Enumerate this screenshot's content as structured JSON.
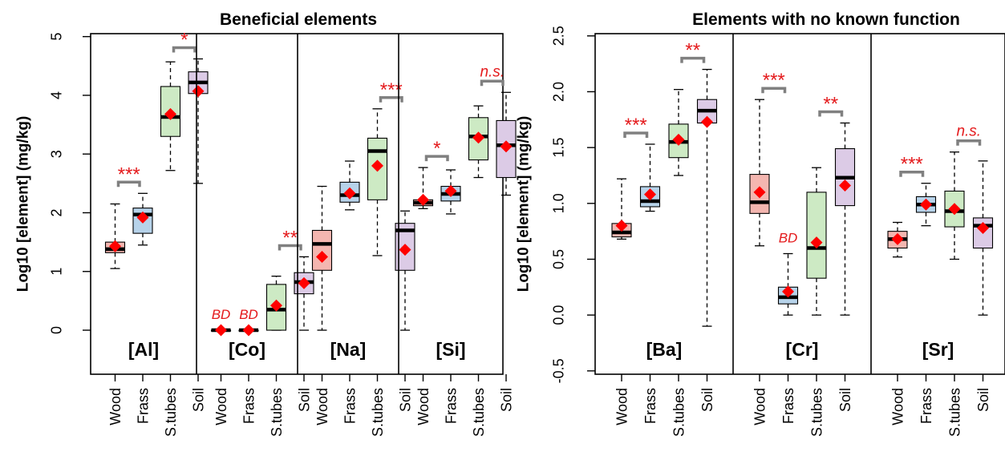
{
  "colors": {
    "Wood": "#f4b6b0",
    "Frass": "#b7d3ea",
    "S.tubes": "#cdeac4",
    "Soil": "#dccbe6",
    "mean": "#ff0000",
    "annotation": "#e41a1c",
    "bracket": "#808080"
  },
  "chart_data": [
    {
      "type": "box",
      "title": "Beneficial elements",
      "ylabel": "Log10 [element] (mg/kg)",
      "ylim": [
        -0.75,
        5.05
      ],
      "yticks": [
        "0",
        "1",
        "2",
        "3",
        "4",
        "5"
      ],
      "categories": [
        "Wood",
        "Frass",
        "S.tubes",
        "Soil"
      ],
      "panels": [
        {
          "label": "[Al]",
          "boxes": [
            {
              "min": 1.05,
              "q1": 1.32,
              "median": 1.38,
              "q3": 1.5,
              "max": 2.15,
              "mean": 1.43
            },
            {
              "min": 1.45,
              "q1": 1.65,
              "median": 1.97,
              "q3": 2.08,
              "max": 2.33,
              "mean": 1.92
            },
            {
              "min": 2.72,
              "q1": 3.3,
              "median": 3.63,
              "q3": 4.15,
              "max": 4.57,
              "mean": 3.68
            },
            {
              "min": 2.5,
              "q1": 4.03,
              "median": 4.22,
              "q3": 4.4,
              "max": 4.62,
              "mean": 4.07
            }
          ],
          "comparisons": [
            {
              "pair": [
                0,
                1
              ],
              "label": "***",
              "italic": false
            },
            {
              "pair": [
                2,
                3
              ],
              "label": "*",
              "italic": false
            }
          ],
          "bd": []
        },
        {
          "label": "[Co]",
          "boxes": [
            {
              "min": 0.0,
              "q1": 0.0,
              "median": 0.0,
              "q3": 0.0,
              "max": 0.0,
              "mean": 0.0
            },
            {
              "min": 0.0,
              "q1": 0.0,
              "median": 0.0,
              "q3": 0.0,
              "max": 0.0,
              "mean": 0.0
            },
            {
              "min": 0.0,
              "q1": 0.0,
              "median": 0.35,
              "q3": 0.78,
              "max": 0.92,
              "mean": 0.42
            },
            {
              "min": 0.0,
              "q1": 0.62,
              "median": 0.82,
              "q3": 0.98,
              "max": 1.25,
              "mean": 0.8
            }
          ],
          "comparisons": [
            {
              "pair": [
                2,
                3
              ],
              "label": "**",
              "italic": false
            }
          ],
          "bd": [
            {
              "index": 0,
              "label": "BD"
            },
            {
              "index": 1,
              "label": "BD"
            }
          ]
        },
        {
          "label": "[Na]",
          "boxes": [
            {
              "min": 0.0,
              "q1": 1.02,
              "median": 1.47,
              "q3": 1.7,
              "max": 2.45,
              "mean": 1.25
            },
            {
              "min": 2.05,
              "q1": 2.18,
              "median": 2.3,
              "q3": 2.52,
              "max": 2.88,
              "mean": 2.33
            },
            {
              "min": 1.27,
              "q1": 2.22,
              "median": 3.05,
              "q3": 3.27,
              "max": 3.77,
              "mean": 2.8
            },
            {
              "min": 0.0,
              "q1": 1.02,
              "median": 1.7,
              "q3": 1.82,
              "max": 2.03,
              "mean": 1.37
            }
          ],
          "comparisons": [
            {
              "pair": [
                2,
                3
              ],
              "label": "***",
              "italic": false
            }
          ],
          "bd": []
        },
        {
          "label": "[Si]",
          "boxes": [
            {
              "min": 2.07,
              "q1": 2.12,
              "median": 2.17,
              "q3": 2.22,
              "max": 2.77,
              "mean": 2.22
            },
            {
              "min": 1.98,
              "q1": 2.2,
              "median": 2.32,
              "q3": 2.45,
              "max": 2.73,
              "mean": 2.37
            },
            {
              "min": 2.6,
              "q1": 2.9,
              "median": 3.3,
              "q3": 3.62,
              "max": 3.82,
              "mean": 3.28
            },
            {
              "min": 2.3,
              "q1": 2.6,
              "median": 3.15,
              "q3": 3.57,
              "max": 4.05,
              "mean": 3.13
            }
          ],
          "comparisons": [
            {
              "pair": [
                0,
                1
              ],
              "label": "*",
              "italic": false
            },
            {
              "pair": [
                2,
                3
              ],
              "label": "n.s.",
              "italic": true
            }
          ],
          "bd": []
        }
      ]
    },
    {
      "type": "box",
      "title": "Elements with no known function",
      "ylabel": "Log10 [element] (mg/kg)",
      "ylim": [
        -0.53,
        2.52
      ],
      "yticks": [
        "-0.5",
        "0.0",
        "0.5",
        "1.0",
        "1.5",
        "2.0",
        "2.5"
      ],
      "categories": [
        "Wood",
        "Frass",
        "S.tubes",
        "Soil"
      ],
      "panels": [
        {
          "label": "[Ba]",
          "boxes": [
            {
              "min": 0.68,
              "q1": 0.7,
              "median": 0.74,
              "q3": 0.82,
              "max": 1.22,
              "mean": 0.8
            },
            {
              "min": 0.93,
              "q1": 0.97,
              "median": 1.02,
              "q3": 1.15,
              "max": 1.53,
              "mean": 1.08
            },
            {
              "min": 1.25,
              "q1": 1.41,
              "median": 1.55,
              "q3": 1.71,
              "max": 2.02,
              "mean": 1.57
            },
            {
              "min": -0.1,
              "q1": 1.72,
              "median": 1.83,
              "q3": 1.93,
              "max": 2.2,
              "mean": 1.73
            }
          ],
          "comparisons": [
            {
              "pair": [
                0,
                1
              ],
              "label": "***",
              "italic": false
            },
            {
              "pair": [
                2,
                3
              ],
              "label": "**",
              "italic": false
            }
          ],
          "bd": []
        },
        {
          "label": "[Cr]",
          "boxes": [
            {
              "min": 0.62,
              "q1": 0.91,
              "median": 1.01,
              "q3": 1.26,
              "max": 1.93,
              "mean": 1.1
            },
            {
              "min": 0.0,
              "q1": 0.1,
              "median": 0.16,
              "q3": 0.25,
              "max": 0.55,
              "mean": 0.21
            },
            {
              "min": 0.0,
              "q1": 0.33,
              "median": 0.6,
              "q3": 1.1,
              "max": 1.32,
              "mean": 0.65
            },
            {
              "min": 0.0,
              "q1": 0.98,
              "median": 1.23,
              "q3": 1.49,
              "max": 1.72,
              "mean": 1.16
            }
          ],
          "comparisons": [
            {
              "pair": [
                0,
                1
              ],
              "label": "***",
              "italic": false
            },
            {
              "pair": [
                2,
                3
              ],
              "label": "**",
              "italic": false
            }
          ],
          "bd": [
            {
              "index": 1,
              "label": "BD"
            }
          ]
        },
        {
          "label": "[Sr]",
          "boxes": [
            {
              "min": 0.52,
              "q1": 0.6,
              "median": 0.68,
              "q3": 0.75,
              "max": 0.83,
              "mean": 0.68
            },
            {
              "min": 0.8,
              "q1": 0.92,
              "median": 0.99,
              "q3": 1.06,
              "max": 1.18,
              "mean": 0.99
            },
            {
              "min": 0.5,
              "q1": 0.79,
              "median": 0.93,
              "q3": 1.11,
              "max": 1.46,
              "mean": 0.95
            },
            {
              "min": 0.0,
              "q1": 0.6,
              "median": 0.8,
              "q3": 0.87,
              "max": 1.38,
              "mean": 0.78
            }
          ],
          "comparisons": [
            {
              "pair": [
                0,
                1
              ],
              "label": "***",
              "italic": false
            },
            {
              "pair": [
                2,
                3
              ],
              "label": "n.s.",
              "italic": true
            }
          ],
          "bd": []
        }
      ]
    }
  ]
}
